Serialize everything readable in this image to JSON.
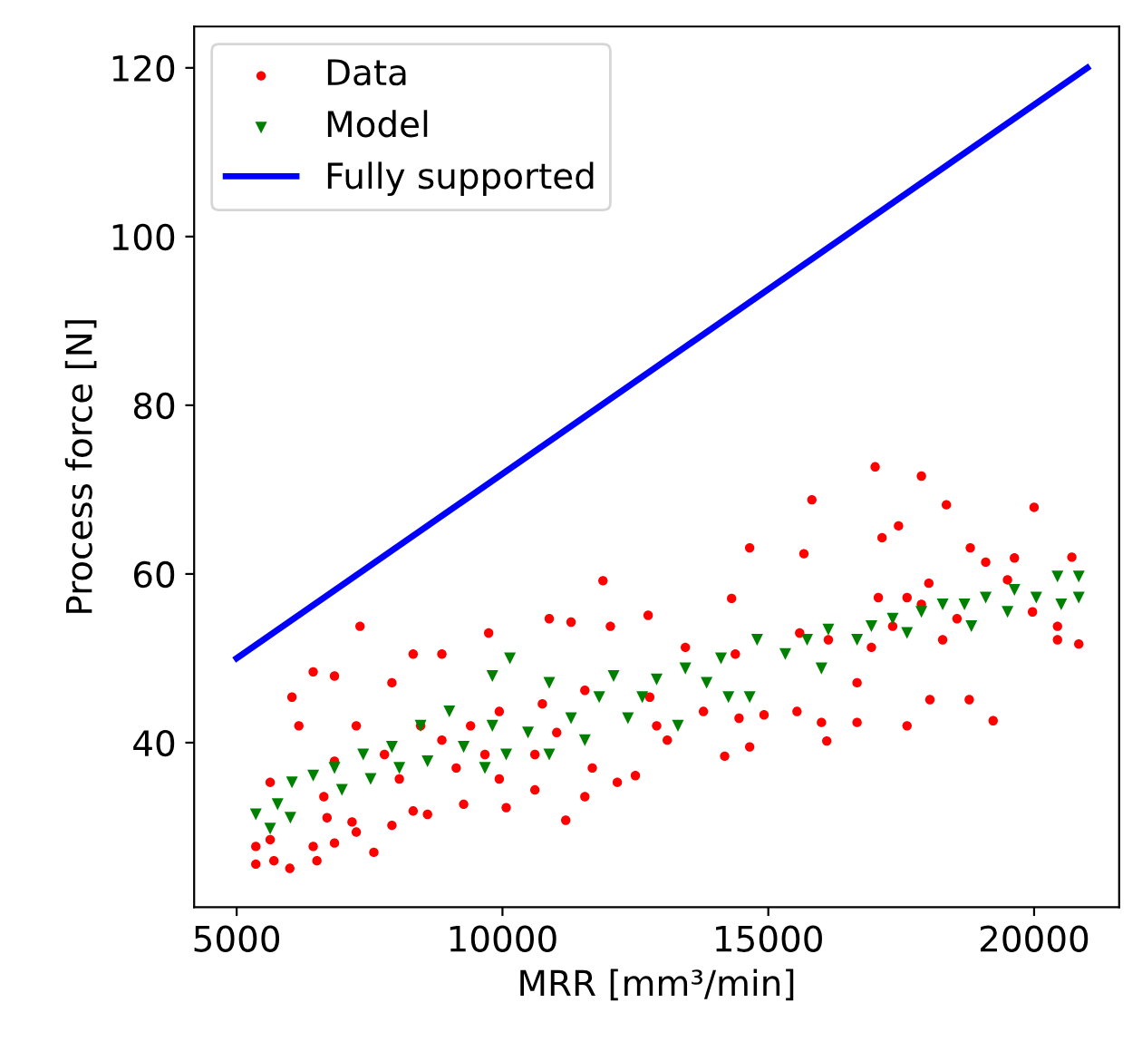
{
  "chart_data": {
    "type": "scatter",
    "xlabel": "MRR [mm³/min]",
    "ylabel": "Process force [N]",
    "xlim": [
      4200,
      21600
    ],
    "ylim": [
      20.5,
      124.9
    ],
    "xticks": [
      5000,
      10000,
      15000,
      20000
    ],
    "yticks": [
      40,
      60,
      80,
      100,
      120
    ],
    "grid": false,
    "legend": "top left",
    "series": [
      {
        "name": "Data",
        "marker": "circle",
        "color": "#ff0000",
        "x": [
          17010,
          17880,
          15820,
          18350,
          20000,
          17450,
          17140,
          14650,
          15670,
          18800,
          20710,
          11890,
          14310,
          18020,
          19500,
          19090,
          19630,
          19970,
          20440,
          20840,
          20440,
          19230,
          18780,
          18040,
          17610,
          16670,
          16100,
          16000,
          15540,
          14920,
          14650,
          14180,
          14450,
          13780,
          11190,
          12770,
          10880,
          11290,
          12740,
          12030,
          7320,
          9740,
          8320,
          8860,
          6040,
          6440,
          6840,
          6170,
          7250,
          7920,
          5360,
          5360,
          5700,
          6000,
          5630,
          6510,
          6440,
          6840,
          7580,
          7250,
          6700,
          7170,
          7920,
          8590,
          6640,
          8320,
          9270,
          10070,
          10610,
          11550,
          12160,
          12500,
          11690,
          13100,
          9940,
          8060,
          9130,
          6840,
          5630,
          8460,
          9940,
          9400,
          10750,
          11550,
          12900,
          13440,
          14380,
          16130,
          15590,
          16670,
          16940,
          17340,
          17880,
          18550,
          18280,
          17610,
          17070,
          10610,
          11020,
          7780,
          8860,
          9670
        ],
        "values": [
          72.7,
          71.6,
          68.8,
          68.2,
          67.9,
          65.7,
          64.3,
          63.1,
          62.4,
          63.1,
          62.0,
          59.2,
          57.1,
          58.9,
          59.3,
          61.4,
          61.9,
          55.5,
          52.2,
          51.7,
          53.8,
          42.6,
          45.1,
          45.1,
          42.0,
          42.4,
          40.2,
          42.4,
          43.7,
          43.3,
          39.5,
          38.4,
          42.9,
          43.7,
          30.8,
          45.4,
          54.7,
          54.3,
          55.1,
          53.8,
          53.8,
          53.0,
          50.5,
          50.5,
          45.4,
          48.4,
          47.9,
          42.0,
          42.0,
          47.1,
          27.7,
          25.6,
          26.0,
          25.1,
          28.5,
          26.0,
          27.7,
          28.1,
          27.0,
          29.4,
          31.1,
          30.6,
          30.2,
          31.5,
          33.6,
          31.9,
          32.7,
          32.3,
          34.4,
          33.6,
          35.3,
          36.1,
          37.0,
          40.3,
          35.7,
          35.7,
          37.0,
          37.8,
          35.3,
          42.0,
          43.7,
          42.0,
          44.6,
          46.2,
          42.0,
          51.3,
          50.5,
          52.2,
          53.0,
          47.1,
          51.3,
          53.8,
          56.4,
          54.7,
          52.2,
          57.2,
          57.2,
          38.6,
          41.2,
          38.6,
          40.3,
          38.6
        ]
      },
      {
        "name": "Model",
        "marker": "triangle",
        "color": "#008000",
        "x": [
          5360,
          5630,
          5770,
          6010,
          6040,
          6440,
          6840,
          6980,
          7380,
          7520,
          7920,
          8060,
          8460,
          8590,
          9000,
          9270,
          9670,
          9810,
          10070,
          10140,
          9810,
          10480,
          10880,
          10880,
          11290,
          11550,
          11820,
          12090,
          12360,
          12630,
          12900,
          13300,
          13440,
          13840,
          14110,
          14250,
          14650,
          14790,
          15320,
          15730,
          16000,
          16130,
          16670,
          16940,
          17340,
          17610,
          17880,
          18280,
          18690,
          18820,
          19090,
          19500,
          19630,
          20040,
          20440,
          20510,
          20840,
          20840
        ],
        "values": [
          31.5,
          29.8,
          32.7,
          31.1,
          35.3,
          36.1,
          37.0,
          34.4,
          38.6,
          35.7,
          39.5,
          37.0,
          42.0,
          37.8,
          43.7,
          39.5,
          37.0,
          42.0,
          38.6,
          50.0,
          47.9,
          41.2,
          38.6,
          47.1,
          42.9,
          40.3,
          45.4,
          47.9,
          42.9,
          45.4,
          47.5,
          42.0,
          48.8,
          47.1,
          50.0,
          45.4,
          45.4,
          52.2,
          50.5,
          52.2,
          48.8,
          53.4,
          52.2,
          53.8,
          54.7,
          53.0,
          55.5,
          56.4,
          56.4,
          53.8,
          57.2,
          55.5,
          58.1,
          57.2,
          59.7,
          56.4,
          59.7,
          57.2
        ]
      },
      {
        "name": "Fully supported",
        "type": "line",
        "marker": "none",
        "line_style": "solid",
        "color": "#0000ff",
        "x": [
          5000,
          21000
        ],
        "values": [
          50,
          120
        ]
      }
    ]
  }
}
